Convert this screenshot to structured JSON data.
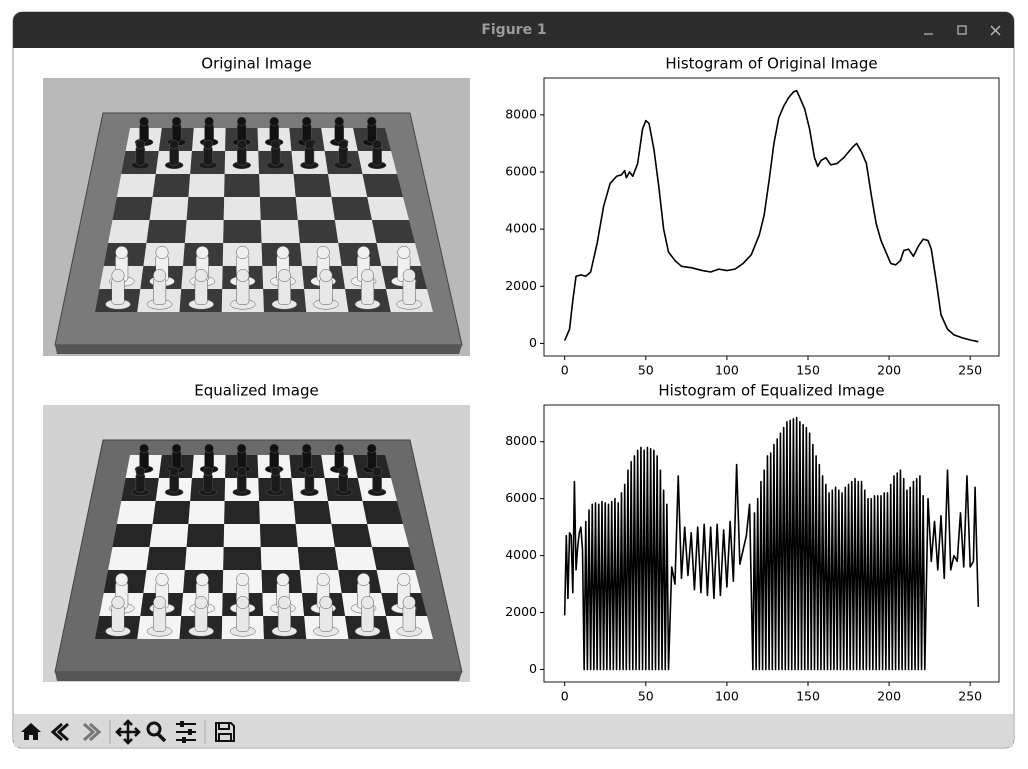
{
  "window": {
    "title": "Figure 1"
  },
  "chart_data": [
    {
      "type": "image",
      "title": "Original Image"
    },
    {
      "type": "line",
      "title": "Histogram of Original Image",
      "color": "#000000",
      "x": [
        0,
        3,
        5,
        7,
        10,
        13,
        16,
        20,
        24,
        28,
        32,
        35,
        37,
        38,
        40,
        42,
        45,
        48,
        50,
        52,
        55,
        58,
        61,
        64,
        68,
        72,
        78,
        85,
        90,
        95,
        100,
        105,
        110,
        115,
        120,
        123,
        126,
        129,
        132,
        135,
        138,
        141,
        143,
        145,
        148,
        151,
        154,
        156,
        158,
        161,
        164,
        168,
        172,
        175,
        178,
        180,
        183,
        186,
        189,
        192,
        195,
        198,
        201,
        204,
        207,
        209,
        212,
        215,
        218,
        221,
        224,
        226,
        229,
        232,
        236,
        240,
        245,
        250,
        255
      ],
      "values": [
        100,
        500,
        1500,
        2350,
        2400,
        2350,
        2500,
        3500,
        4800,
        5600,
        5850,
        5900,
        6050,
        5800,
        6000,
        5850,
        6300,
        7500,
        7800,
        7700,
        6800,
        5500,
        4000,
        3200,
        2900,
        2700,
        2650,
        2550,
        2500,
        2600,
        2550,
        2600,
        2800,
        3100,
        3800,
        4500,
        5700,
        7000,
        7900,
        8300,
        8600,
        8800,
        8850,
        8600,
        8200,
        7500,
        6500,
        6200,
        6400,
        6500,
        6250,
        6300,
        6500,
        6700,
        6900,
        7000,
        6700,
        6300,
        5200,
        4200,
        3600,
        3200,
        2800,
        2750,
        2900,
        3250,
        3300,
        3050,
        3400,
        3650,
        3600,
        3300,
        2200,
        1000,
        500,
        300,
        200,
        120,
        60
      ],
      "xlim": [
        -12.75,
        267.75
      ],
      "ylim": [
        -440,
        9290
      ],
      "xticks": [
        0,
        50,
        100,
        150,
        200,
        250
      ],
      "yticks": [
        0,
        2000,
        4000,
        6000,
        8000
      ]
    },
    {
      "type": "image",
      "title": "Equalized Image"
    },
    {
      "type": "line",
      "title": "Histogram of Equalized Image",
      "color": "#000000",
      "x": [
        0,
        1,
        2,
        3,
        4,
        5,
        6,
        7,
        8,
        9,
        10,
        11,
        12,
        13,
        14,
        15,
        16,
        17,
        18,
        19,
        20,
        21,
        22,
        23,
        24,
        25,
        26,
        27,
        28,
        29,
        30,
        31,
        32,
        33,
        34,
        35,
        36,
        37,
        38,
        39,
        40,
        41,
        42,
        43,
        44,
        45,
        46,
        47,
        48,
        49,
        50,
        51,
        52,
        53,
        54,
        55,
        56,
        57,
        58,
        59,
        60,
        61,
        62,
        63,
        64,
        66,
        68,
        70,
        72,
        74,
        76,
        78,
        80,
        82,
        84,
        86,
        88,
        90,
        92,
        94,
        96,
        98,
        100,
        102,
        104,
        106,
        108,
        110,
        112,
        114,
        116,
        117,
        118,
        119,
        120,
        121,
        122,
        123,
        124,
        125,
        126,
        127,
        128,
        129,
        130,
        131,
        132,
        133,
        134,
        135,
        136,
        137,
        138,
        139,
        140,
        141,
        142,
        143,
        144,
        145,
        146,
        147,
        148,
        149,
        150,
        151,
        152,
        153,
        154,
        155,
        156,
        157,
        158,
        159,
        160,
        161,
        162,
        163,
        164,
        165,
        166,
        167,
        168,
        169,
        170,
        171,
        172,
        173,
        174,
        175,
        176,
        177,
        178,
        179,
        180,
        181,
        182,
        183,
        184,
        185,
        186,
        187,
        188,
        189,
        190,
        191,
        192,
        193,
        194,
        195,
        196,
        197,
        198,
        199,
        200,
        201,
        202,
        203,
        204,
        205,
        206,
        207,
        208,
        209,
        210,
        211,
        212,
        213,
        214,
        215,
        216,
        217,
        218,
        219,
        220,
        221,
        222,
        224,
        226,
        228,
        230,
        232,
        234,
        236,
        238,
        240,
        242,
        244,
        246,
        248,
        250,
        252,
        253,
        254,
        255
      ],
      "values": [
        1900,
        4700,
        2500,
        4800,
        4700,
        2700,
        6600,
        3500,
        4300,
        4800,
        5000,
        4200,
        0,
        5200,
        0,
        5600,
        0,
        5800,
        0,
        5850,
        0,
        5800,
        0,
        5900,
        0,
        5850,
        0,
        5800,
        0,
        5900,
        0,
        6000,
        0,
        5850,
        0,
        6200,
        0,
        6500,
        0,
        7000,
        0,
        7300,
        0,
        7500,
        0,
        7700,
        0,
        7800,
        0,
        7700,
        0,
        7800,
        0,
        7750,
        0,
        7700,
        0,
        7500,
        0,
        7000,
        0,
        6300,
        0,
        5800,
        0,
        3600,
        3000,
        6800,
        3200,
        5000,
        3300,
        4800,
        2800,
        5000,
        2700,
        5100,
        2600,
        5000,
        2500,
        5100,
        2600,
        4900,
        2900,
        5200,
        3100,
        7200,
        3700,
        4200,
        4700,
        5800,
        0,
        5500,
        0,
        6000,
        0,
        6600,
        0,
        7000,
        0,
        7500,
        0,
        7600,
        0,
        7900,
        0,
        8100,
        0,
        8300,
        0,
        8500,
        0,
        8700,
        0,
        8750,
        0,
        8800,
        0,
        8850,
        0,
        8700,
        0,
        8600,
        0,
        8500,
        0,
        8300,
        0,
        7900,
        0,
        7500,
        0,
        7200,
        0,
        6800,
        0,
        6500,
        0,
        6200,
        0,
        6300,
        0,
        6400,
        0,
        6300,
        0,
        6200,
        0,
        6400,
        0,
        6500,
        0,
        6600,
        0,
        6700,
        0,
        6600,
        0,
        6600,
        0,
        6300,
        0,
        6000,
        0,
        6000,
        0,
        6100,
        0,
        6100,
        0,
        6100,
        0,
        6200,
        0,
        6200,
        0,
        6500,
        0,
        6800,
        0,
        6900,
        0,
        7000,
        0,
        6700,
        0,
        6300,
        0,
        6400,
        0,
        6600,
        0,
        6700,
        0,
        6800,
        0,
        6100,
        0,
        6000,
        3800,
        5200,
        3500,
        5400,
        3200,
        7000,
        3500,
        4000,
        3800,
        5500,
        3600,
        6800,
        3600,
        3800,
        6400,
        4200,
        2200
      ],
      "xlim": [
        -12.75,
        267.75
      ],
      "ylim": [
        -440,
        9290
      ],
      "xticks": [
        0,
        50,
        100,
        150,
        200,
        250
      ],
      "yticks": [
        0,
        2000,
        4000,
        6000,
        8000
      ]
    }
  ]
}
